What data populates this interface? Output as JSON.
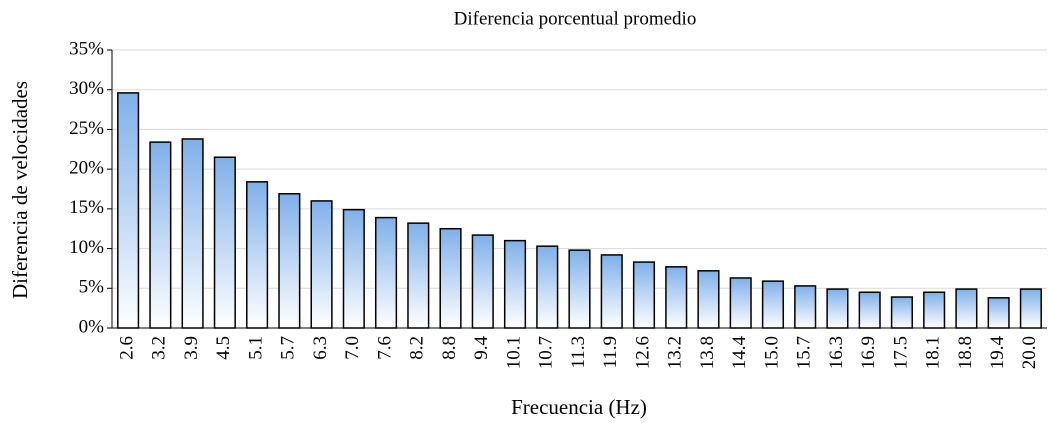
{
  "chart_data": {
    "type": "bar",
    "title": "Diferencia porcentual promedio",
    "x_label": "Frecuencia (Hz)",
    "y_label": "Diferencia de velocidades",
    "categories": [
      "2.6",
      "3.2",
      "3.9",
      "4.5",
      "5.1",
      "5.7",
      "6.3",
      "7.0",
      "7.6",
      "8.2",
      "8.8",
      "9.4",
      "10.1",
      "10.7",
      "11.3",
      "11.9",
      "12.6",
      "13.2",
      "13.8",
      "14.4",
      "15.0",
      "15.7",
      "16.3",
      "16.9",
      "17.5",
      "18.1",
      "18.8",
      "19.4",
      "20.0"
    ],
    "values": [
      29.6,
      23.4,
      23.8,
      21.5,
      18.4,
      16.9,
      16.0,
      14.9,
      13.9,
      13.2,
      12.5,
      11.7,
      11.0,
      10.3,
      9.8,
      9.2,
      8.3,
      7.7,
      7.2,
      6.3,
      5.9,
      5.3,
      4.9,
      4.5,
      3.9,
      4.5,
      4.9,
      3.8,
      4.9
    ],
    "color": "#7fb0ea",
    "ylim": [
      0,
      35
    ],
    "yticks": [
      {
        "value": 0,
        "label": "0%"
      },
      {
        "value": 5,
        "label": "5%"
      },
      {
        "value": 10,
        "label": "10%"
      },
      {
        "value": 15,
        "label": "15%"
      },
      {
        "value": 20,
        "label": "20%"
      },
      {
        "value": 25,
        "label": "25%"
      },
      {
        "value": 30,
        "label": "30%"
      },
      {
        "value": 35,
        "label": "35%"
      }
    ],
    "grid": true
  }
}
